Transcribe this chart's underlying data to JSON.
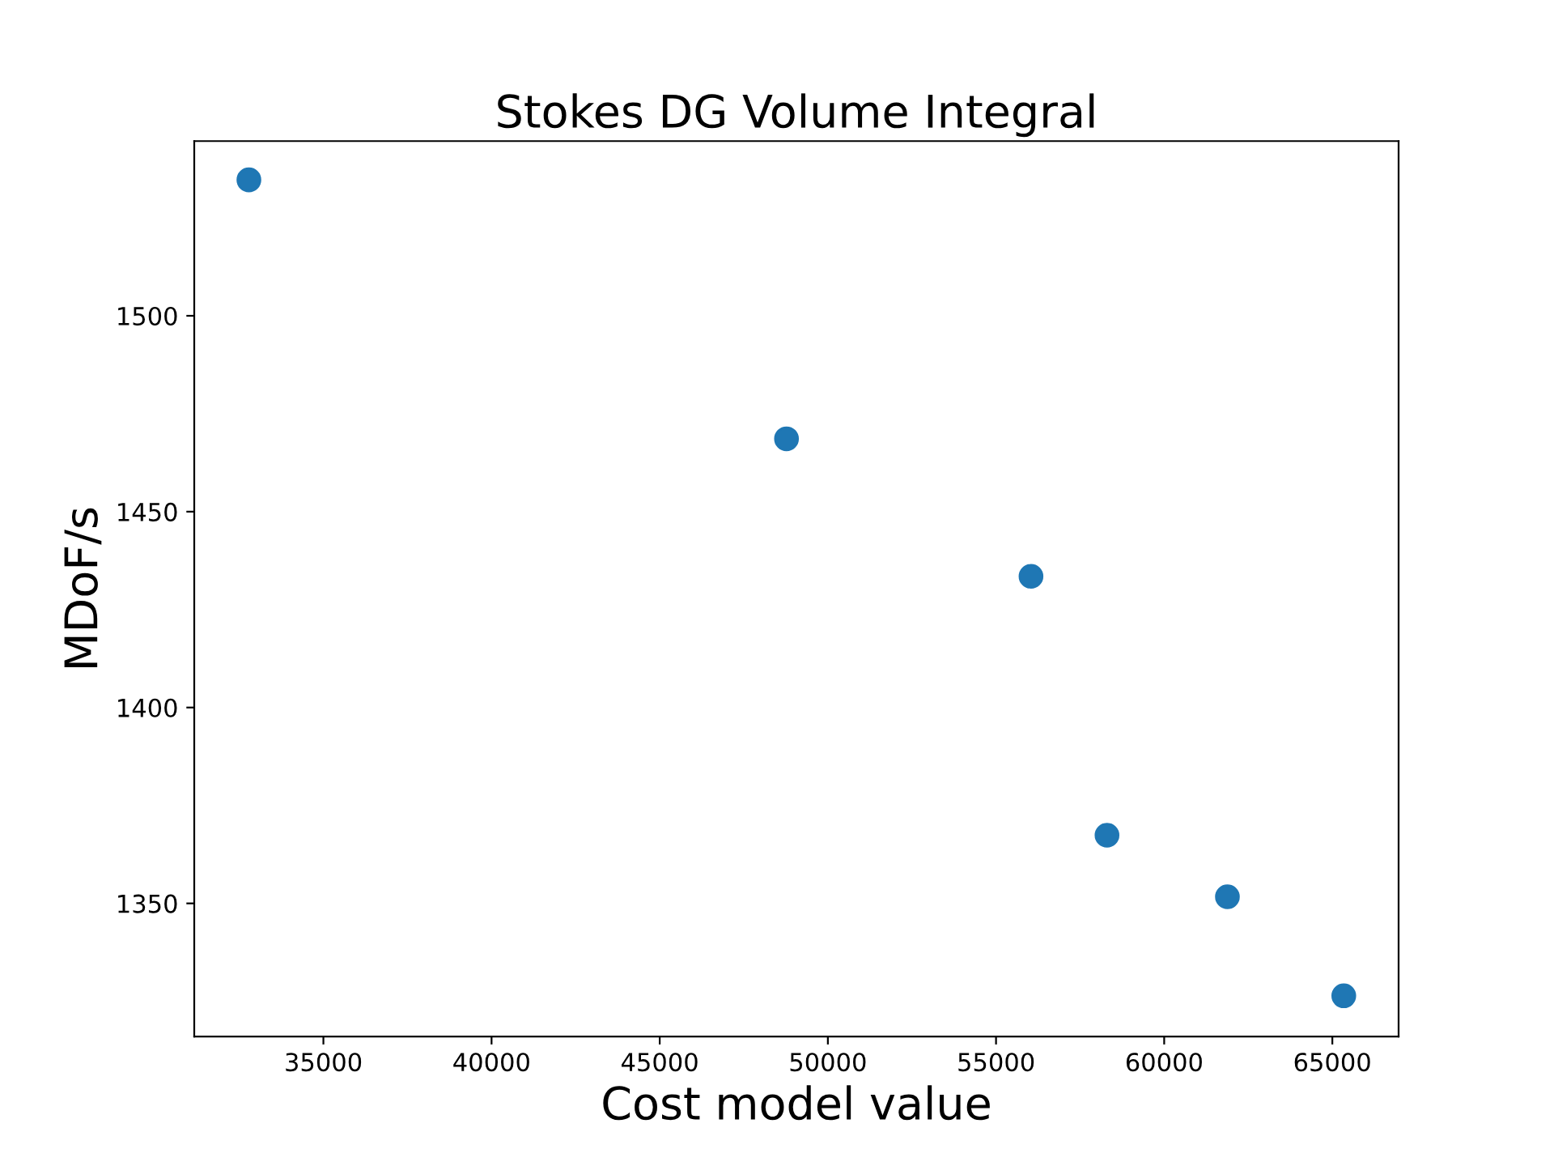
{
  "chart_data": {
    "type": "scatter",
    "title": "Stokes DG Volume Integral",
    "xlabel": "Cost model value",
    "ylabel": "MDoF/s",
    "x": [
      32785,
      48770,
      56040,
      58300,
      61880,
      65340
    ],
    "series": [
      {
        "color": "#1f77b4",
        "values": [
          1534.7,
          1468.6,
          1433.5,
          1367.4,
          1351.7,
          1326.4
        ]
      }
    ],
    "xlim": [
      31160,
      66970
    ],
    "ylim": [
      1316,
      1544.6
    ],
    "xticks": [
      35000,
      40000,
      45000,
      50000,
      55000,
      60000,
      65000
    ],
    "yticks": [
      1350,
      1400,
      1450,
      1500
    ],
    "marker": "circle"
  }
}
